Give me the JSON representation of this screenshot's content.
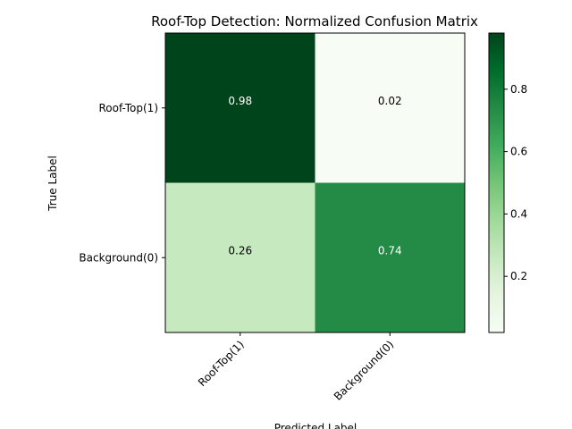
{
  "chart_data": {
    "type": "heatmap",
    "title": "Roof-Top Detection: Normalized Confusion Matrix",
    "xlabel": "Predicted Label",
    "ylabel": "True Label",
    "x_categories": [
      "Roof-Top(1)",
      "Background(0)"
    ],
    "y_categories": [
      "Roof-Top(1)",
      "Background(0)"
    ],
    "values": [
      [
        0.98,
        0.02
      ],
      [
        0.26,
        0.74
      ]
    ],
    "cell_labels": [
      [
        "0.98",
        "0.02"
      ],
      [
        "0.26",
        "0.74"
      ]
    ],
    "colormap": "Greens",
    "colorbar": {
      "range": [
        0.02,
        0.98
      ],
      "ticks": [
        0.2,
        0.4,
        0.6,
        0.8
      ],
      "tick_labels": [
        "0.2",
        "0.4",
        "0.6",
        "0.8"
      ]
    },
    "x_tick_rotation": "45 degrees",
    "grid": false
  }
}
